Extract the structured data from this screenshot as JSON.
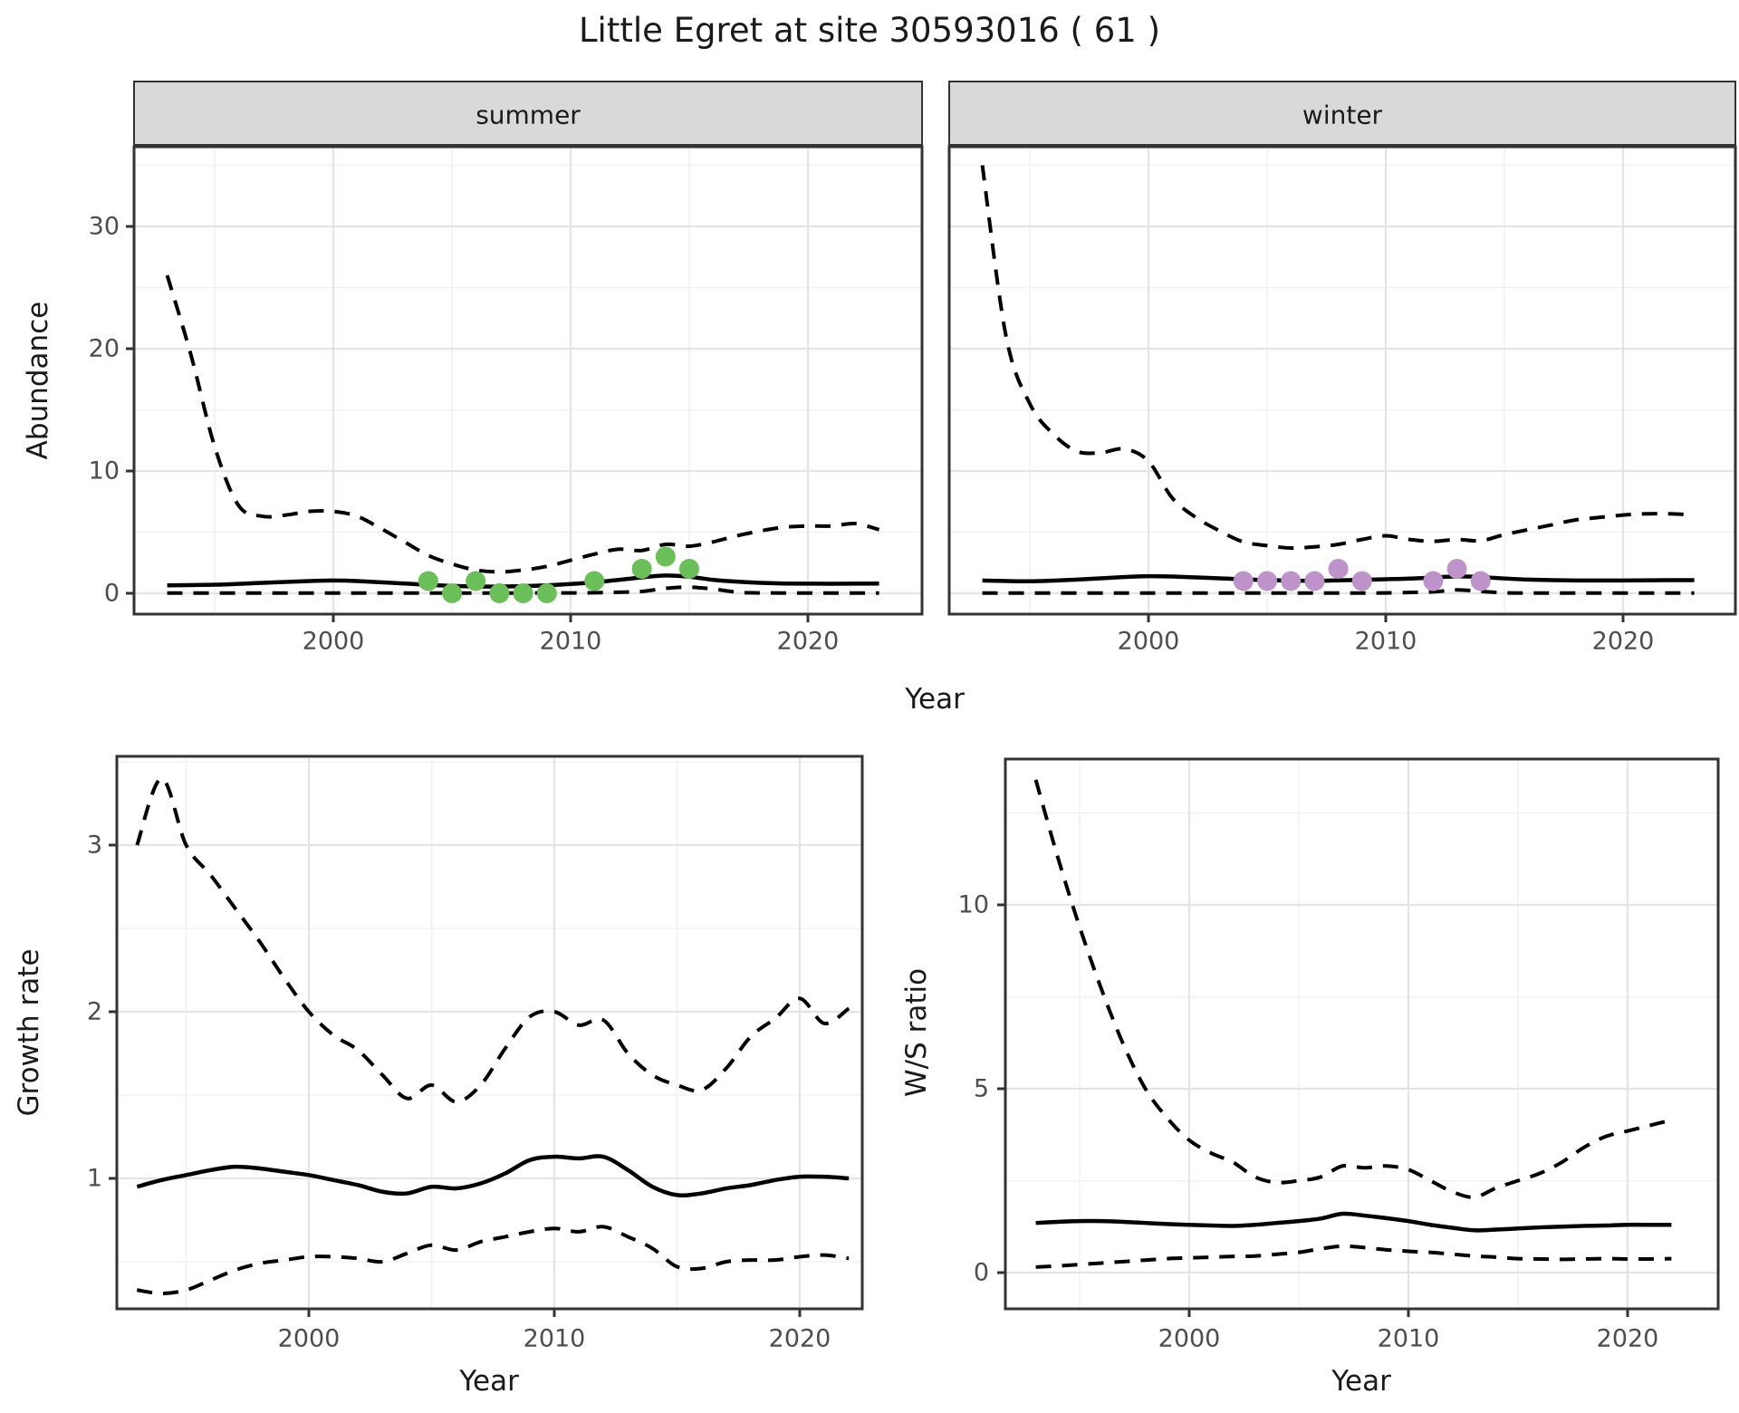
{
  "title": "Little Egret at site 30593016 ( 61 )",
  "labels": {
    "abundance_axis": "Abundance",
    "year_axis": "Year",
    "growth_axis": "Growth rate",
    "ws_axis": "W/S ratio"
  },
  "colors": {
    "summer_point": "#6bbf59",
    "winter_point": "#bd93c9",
    "strip_bg": "#d9d9d9",
    "panel_border": "#333333",
    "line": "#000000",
    "grid_major": "#e4e4e4",
    "grid_minor": "#f1f1f1",
    "tick_text": "#4d4d4d"
  },
  "chart_data": [
    {
      "id": "abundance-summer",
      "type": "line",
      "facet": "summer",
      "ylabel": "Abundance",
      "xlabel": "Year",
      "xticks": [
        2000,
        2010,
        2020
      ],
      "yticks": [
        0,
        10,
        20,
        30
      ],
      "xlim": [
        1991.6,
        2024.8
      ],
      "ylim": [
        -1.7,
        36.5
      ],
      "grid": true,
      "series": [
        {
          "name": "upper_95ci",
          "style": "dashed",
          "x": [
            1993,
            1994,
            1995,
            1996,
            1997,
            1998,
            1999,
            2000,
            2001,
            2002,
            2003,
            2004,
            2005,
            2006,
            2007,
            2008,
            2009,
            2010,
            2011,
            2012,
            2013,
            2014,
            2015,
            2016,
            2017,
            2018,
            2019,
            2020,
            2021,
            2022,
            2023
          ],
          "y": [
            26,
            19.5,
            12,
            7.2,
            6.3,
            6.4,
            6.7,
            6.7,
            6.3,
            5.3,
            4.2,
            3.1,
            2.4,
            1.9,
            1.75,
            1.9,
            2.2,
            2.7,
            3.2,
            3.6,
            3.5,
            4.0,
            3.85,
            4.2,
            4.7,
            5.1,
            5.4,
            5.5,
            5.5,
            5.7,
            5.2
          ]
        },
        {
          "name": "mean",
          "style": "solid",
          "x": [
            1993,
            1995,
            1997,
            1999,
            2000,
            2001,
            2003,
            2005,
            2007,
            2009,
            2011,
            2013,
            2014,
            2015,
            2016,
            2017,
            2018,
            2019,
            2021,
            2023
          ],
          "y": [
            0.65,
            0.7,
            0.85,
            1.0,
            1.05,
            1.0,
            0.8,
            0.6,
            0.55,
            0.65,
            0.9,
            1.3,
            1.45,
            1.35,
            1.1,
            0.95,
            0.85,
            0.8,
            0.78,
            0.8
          ]
        },
        {
          "name": "lower_95ci",
          "style": "dashed",
          "x": [
            1993,
            2000,
            2005,
            2010,
            2012,
            2013,
            2014,
            2015,
            2016,
            2017,
            2018,
            2023
          ],
          "y": [
            0.02,
            0.02,
            0.02,
            0.03,
            0.08,
            0.15,
            0.4,
            0.5,
            0.35,
            0.1,
            0.03,
            0.02
          ]
        }
      ],
      "points": {
        "name": "observed_counts_summer",
        "color_key": "summer_point",
        "x": [
          2004,
          2005,
          2006,
          2007,
          2008,
          2009,
          2011,
          2013,
          2014,
          2015
        ],
        "y": [
          1,
          0,
          1,
          0,
          0,
          0,
          1,
          2,
          3,
          2
        ]
      }
    },
    {
      "id": "abundance-winter",
      "type": "line",
      "facet": "winter",
      "ylabel": "Abundance",
      "xlabel": "Year",
      "xticks": [
        2000,
        2010,
        2020
      ],
      "yticks": [
        0,
        10,
        20,
        30
      ],
      "xlim": [
        1991.6,
        2024.8
      ],
      "ylim": [
        -1.7,
        36.5
      ],
      "grid": true,
      "series": [
        {
          "name": "upper_95ci",
          "style": "dashed",
          "x": [
            1993,
            1994,
            1995,
            1996,
            1997,
            1998,
            1999,
            2000,
            2001,
            2002,
            2003,
            2004,
            2005,
            2006,
            2007,
            2008,
            2009,
            2010,
            2011,
            2012,
            2013,
            2014,
            2015,
            2016,
            2017,
            2018,
            2019,
            2020,
            2021,
            2022,
            2023
          ],
          "y": [
            35,
            21,
            15.5,
            13,
            11.6,
            11.5,
            11.8,
            10.8,
            7.8,
            6.2,
            5.1,
            4.2,
            3.9,
            3.7,
            3.8,
            4.0,
            4.4,
            4.7,
            4.4,
            4.25,
            4.4,
            4.3,
            4.8,
            5.2,
            5.6,
            6.0,
            6.2,
            6.4,
            6.5,
            6.5,
            6.4
          ]
        },
        {
          "name": "mean",
          "style": "solid",
          "x": [
            1993,
            1995,
            1997,
            1999,
            2000,
            2001,
            2003,
            2005,
            2007,
            2009,
            2011,
            2013,
            2014,
            2016,
            2018,
            2020,
            2022,
            2023
          ],
          "y": [
            1.05,
            0.98,
            1.12,
            1.33,
            1.4,
            1.37,
            1.22,
            1.08,
            1.02,
            1.1,
            1.2,
            1.38,
            1.32,
            1.12,
            1.05,
            1.05,
            1.07,
            1.07
          ]
        },
        {
          "name": "lower_95ci",
          "style": "dashed",
          "x": [
            1993,
            2000,
            2008,
            2010,
            2012,
            2013,
            2014,
            2015,
            2016,
            2023
          ],
          "y": [
            0.02,
            0.02,
            0.02,
            0.03,
            0.12,
            0.28,
            0.15,
            0.05,
            0.02,
            0.02
          ]
        }
      ],
      "points": {
        "name": "observed_counts_winter",
        "color_key": "winter_point",
        "x": [
          2004,
          2005,
          2006,
          2007,
          2008,
          2009,
          2012,
          2013,
          2014
        ],
        "y": [
          1,
          1,
          1,
          1,
          2,
          1,
          1,
          2,
          1
        ]
      }
    },
    {
      "id": "growth-rate",
      "type": "line",
      "facet": null,
      "ylabel": "Growth rate",
      "xlabel": "Year",
      "xticks": [
        2000,
        2010,
        2020
      ],
      "yticks": [
        1,
        2,
        3
      ],
      "xlim": [
        1992.2,
        2022.5
      ],
      "ylim": [
        0.22,
        3.52
      ],
      "grid": true,
      "series": [
        {
          "name": "upper_95ci",
          "style": "dashed",
          "x": [
            1993,
            1994,
            1995,
            1996,
            1997,
            1998,
            1999,
            2000,
            2001,
            2002,
            2003,
            2004,
            2005,
            2006,
            2007,
            2008,
            2009,
            2010,
            2011,
            2012,
            2013,
            2014,
            2015,
            2016,
            2017,
            2018,
            2019,
            2020,
            2021,
            2022
          ],
          "y": [
            3.0,
            3.4,
            3.0,
            2.82,
            2.62,
            2.42,
            2.2,
            2.0,
            1.86,
            1.77,
            1.62,
            1.48,
            1.56,
            1.46,
            1.56,
            1.78,
            1.97,
            2.0,
            1.92,
            1.95,
            1.75,
            1.62,
            1.56,
            1.53,
            1.66,
            1.85,
            1.96,
            2.08,
            1.93,
            2.02
          ]
        },
        {
          "name": "mean",
          "style": "solid",
          "x": [
            1993,
            1994,
            1995,
            1996,
            1997,
            1998,
            1999,
            2000,
            2001,
            2002,
            2003,
            2004,
            2005,
            2006,
            2007,
            2008,
            2009,
            2010,
            2011,
            2012,
            2013,
            2014,
            2015,
            2016,
            2017,
            2018,
            2019,
            2020,
            2021,
            2022
          ],
          "y": [
            0.95,
            0.99,
            1.02,
            1.05,
            1.07,
            1.06,
            1.04,
            1.02,
            0.99,
            0.96,
            0.92,
            0.91,
            0.95,
            0.94,
            0.97,
            1.03,
            1.11,
            1.13,
            1.12,
            1.13,
            1.05,
            0.95,
            0.9,
            0.91,
            0.94,
            0.96,
            0.99,
            1.01,
            1.01,
            1.0
          ]
        },
        {
          "name": "lower_95ci",
          "style": "dashed",
          "x": [
            1993,
            1994,
            1995,
            1996,
            1997,
            1998,
            1999,
            2000,
            2001,
            2002,
            2003,
            2004,
            2005,
            2006,
            2007,
            2008,
            2009,
            2010,
            2011,
            2012,
            2013,
            2014,
            2015,
            2016,
            2017,
            2018,
            2019,
            2020,
            2021,
            2022
          ],
          "y": [
            0.33,
            0.31,
            0.33,
            0.39,
            0.45,
            0.49,
            0.51,
            0.53,
            0.53,
            0.52,
            0.5,
            0.55,
            0.6,
            0.57,
            0.62,
            0.65,
            0.68,
            0.7,
            0.68,
            0.71,
            0.65,
            0.58,
            0.47,
            0.46,
            0.5,
            0.51,
            0.51,
            0.53,
            0.54,
            0.52
          ]
        }
      ]
    },
    {
      "id": "ws-ratio",
      "type": "line",
      "facet": null,
      "ylabel": "W/S ratio",
      "xlabel": "Year",
      "xticks": [
        2000,
        2010,
        2020
      ],
      "yticks": [
        0,
        5,
        10
      ],
      "xlim": [
        1991.6,
        2024.1
      ],
      "ylim": [
        -1.0,
        13.9
      ],
      "grid": true,
      "series": [
        {
          "name": "upper_95ci",
          "style": "dashed",
          "x": [
            1993,
            1994,
            1995,
            1996,
            1997,
            1998,
            1999,
            2000,
            2001,
            2002,
            2003,
            2004,
            2005,
            2006,
            2007,
            2008,
            2009,
            2010,
            2011,
            2012,
            2013,
            2014,
            2015,
            2016,
            2017,
            2018,
            2019,
            2020,
            2021,
            2022
          ],
          "y": [
            13.4,
            11.3,
            9.4,
            7.7,
            6.2,
            5.0,
            4.2,
            3.6,
            3.25,
            3.0,
            2.6,
            2.45,
            2.5,
            2.6,
            2.9,
            2.85,
            2.9,
            2.8,
            2.5,
            2.2,
            2.05,
            2.3,
            2.5,
            2.7,
            3.0,
            3.4,
            3.7,
            3.85,
            4.0,
            4.15
          ]
        },
        {
          "name": "mean",
          "style": "solid",
          "x": [
            1993,
            1994,
            1995,
            1996,
            1997,
            1998,
            1999,
            2000,
            2001,
            2002,
            2003,
            2004,
            2005,
            2006,
            2007,
            2008,
            2009,
            2010,
            2011,
            2012,
            2013,
            2014,
            2015,
            2016,
            2017,
            2018,
            2019,
            2020,
            2021,
            2022
          ],
          "y": [
            1.35,
            1.38,
            1.4,
            1.4,
            1.38,
            1.35,
            1.32,
            1.3,
            1.28,
            1.27,
            1.3,
            1.35,
            1.4,
            1.47,
            1.6,
            1.55,
            1.48,
            1.4,
            1.3,
            1.22,
            1.15,
            1.17,
            1.2,
            1.23,
            1.25,
            1.27,
            1.28,
            1.3,
            1.3,
            1.3
          ]
        },
        {
          "name": "lower_95ci",
          "style": "dashed",
          "x": [
            1993,
            1994,
            1995,
            1996,
            1997,
            1998,
            1999,
            2000,
            2001,
            2002,
            2003,
            2004,
            2005,
            2006,
            2007,
            2008,
            2009,
            2010,
            2011,
            2012,
            2013,
            2014,
            2015,
            2016,
            2017,
            2018,
            2019,
            2020,
            2021,
            2022
          ],
          "y": [
            0.15,
            0.18,
            0.22,
            0.26,
            0.3,
            0.34,
            0.38,
            0.4,
            0.42,
            0.44,
            0.45,
            0.5,
            0.55,
            0.65,
            0.72,
            0.68,
            0.62,
            0.58,
            0.55,
            0.5,
            0.45,
            0.42,
            0.38,
            0.37,
            0.36,
            0.37,
            0.38,
            0.37,
            0.37,
            0.38
          ]
        }
      ]
    }
  ]
}
